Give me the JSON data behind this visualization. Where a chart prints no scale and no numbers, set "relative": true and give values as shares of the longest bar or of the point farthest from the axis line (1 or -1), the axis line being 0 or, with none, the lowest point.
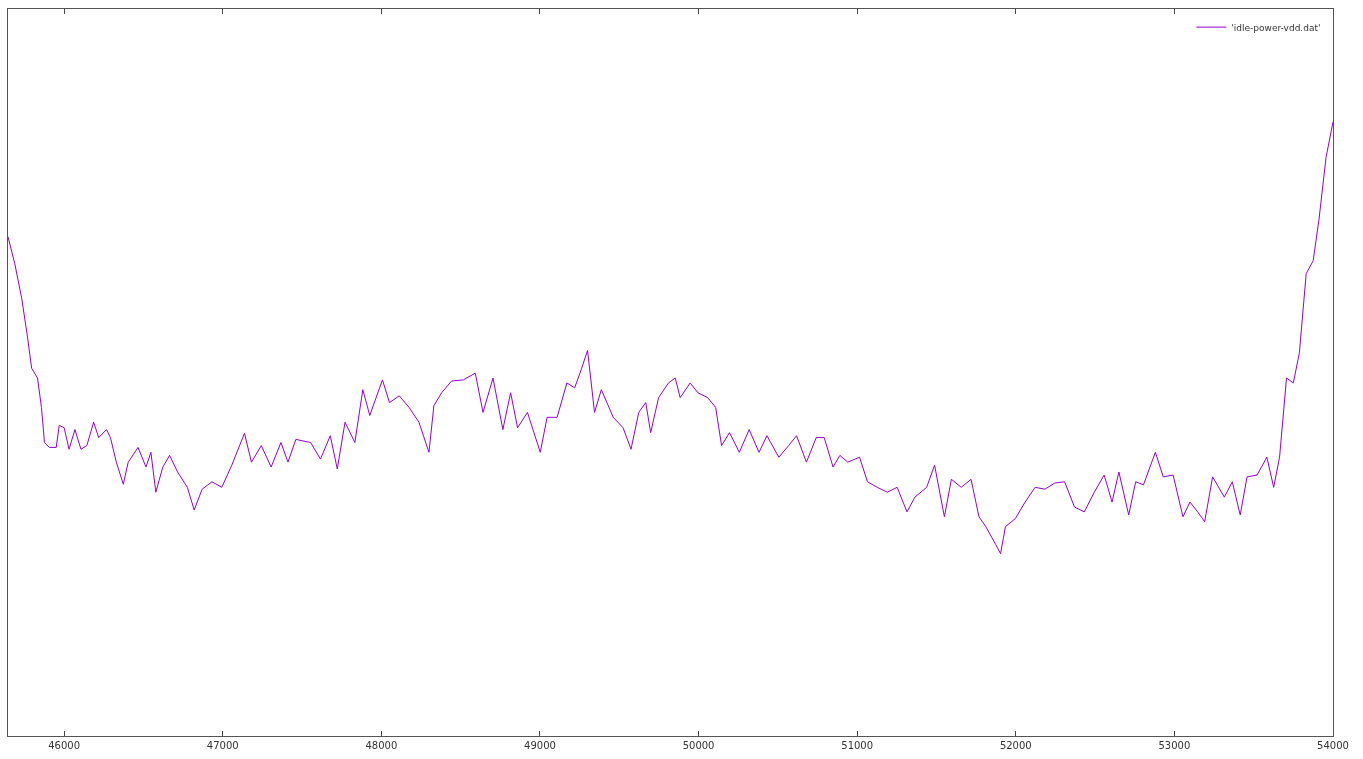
{
  "chart_data": {
    "type": "line",
    "relative": true,
    "xlim": [
      45646,
      54000
    ],
    "xticks": [
      46000,
      47000,
      48000,
      49000,
      50000,
      51000,
      52000,
      53000,
      54000
    ],
    "tick_labels": "x",
    "legend": "top right",
    "series": [
      {
        "name": "'idle-power-vdd.dat'",
        "color": "#9400d3",
        "x": [
          45646,
          45689,
          45733,
          45770,
          45795,
          45832,
          45857,
          45876,
          45907,
          45950,
          45969,
          46000,
          46031,
          46068,
          46106,
          46143,
          46186,
          46218,
          46267,
          46292,
          46329,
          46373,
          46404,
          46466,
          46516,
          46547,
          46578,
          46622,
          46665,
          46715,
          46777,
          46820,
          46870,
          46932,
          46994,
          47057,
          47137,
          47181,
          47243,
          47305,
          47367,
          47411,
          47461,
          47554,
          47616,
          47678,
          47722,
          47771,
          47833,
          47883,
          47927,
          48007,
          48051,
          48113,
          48175,
          48237,
          48300,
          48331,
          48380,
          48442,
          48517,
          48592,
          48641,
          48704,
          48766,
          48815,
          48859,
          48921,
          49002,
          49045,
          49108,
          49170,
          49219,
          49263,
          49300,
          49344,
          49387,
          49462,
          49524,
          49574,
          49623,
          49667,
          49698,
          49748,
          49810,
          49853,
          49884,
          49947,
          49996,
          50058,
          50108,
          50145,
          50195,
          50257,
          50319,
          50381,
          50431,
          50506,
          50568,
          50618,
          50680,
          50742,
          50792,
          50848,
          50891,
          50941,
          51015,
          51065,
          51127,
          51190,
          51252,
          51314,
          51364,
          51438,
          51488,
          51550,
          51594,
          51656,
          51718,
          51768,
          51811,
          51873,
          51904,
          51935,
          51997,
          52059,
          52122,
          52184,
          52246,
          52308,
          52370,
          52432,
          52495,
          52557,
          52607,
          52650,
          52712,
          52756,
          52805,
          52880,
          52930,
          52992,
          53054,
          53098,
          53147,
          53191,
          53241,
          53315,
          53365,
          53415,
          53458,
          53521,
          53583,
          53626,
          53663,
          53707,
          53750,
          53788,
          53831,
          53875,
          53912,
          53956,
          54000
        ],
        "values": [
          0.813,
          0.769,
          0.712,
          0.648,
          0.599,
          0.583,
          0.535,
          0.478,
          0.47,
          0.47,
          0.506,
          0.502,
          0.467,
          0.499,
          0.467,
          0.473,
          0.511,
          0.486,
          0.499,
          0.486,
          0.446,
          0.41,
          0.446,
          0.47,
          0.438,
          0.462,
          0.397,
          0.438,
          0.457,
          0.43,
          0.405,
          0.368,
          0.402,
          0.414,
          0.405,
          0.441,
          0.493,
          0.446,
          0.473,
          0.438,
          0.478,
          0.446,
          0.483,
          0.478,
          0.451,
          0.489,
          0.435,
          0.511,
          0.478,
          0.564,
          0.522,
          0.58,
          0.543,
          0.554,
          0.535,
          0.511,
          0.462,
          0.538,
          0.559,
          0.578,
          0.58,
          0.591,
          0.527,
          0.583,
          0.499,
          0.559,
          0.502,
          0.527,
          0.462,
          0.519,
          0.519,
          0.575,
          0.567,
          0.599,
          0.628,
          0.527,
          0.564,
          0.519,
          0.502,
          0.467,
          0.527,
          0.543,
          0.494,
          0.551,
          0.575,
          0.583,
          0.551,
          0.575,
          0.559,
          0.551,
          0.535,
          0.473,
          0.494,
          0.462,
          0.499,
          0.462,
          0.489,
          0.454,
          0.473,
          0.489,
          0.446,
          0.486,
          0.486,
          0.438,
          0.457,
          0.446,
          0.454,
          0.414,
          0.405,
          0.397,
          0.405,
          0.365,
          0.389,
          0.405,
          0.441,
          0.357,
          0.418,
          0.405,
          0.418,
          0.357,
          0.341,
          0.312,
          0.297,
          0.341,
          0.354,
          0.381,
          0.405,
          0.402,
          0.412,
          0.414,
          0.373,
          0.365,
          0.397,
          0.425,
          0.381,
          0.43,
          0.36,
          0.414,
          0.409,
          0.462,
          0.422,
          0.425,
          0.357,
          0.381,
          0.365,
          0.349,
          0.422,
          0.389,
          0.414,
          0.36,
          0.422,
          0.425,
          0.454,
          0.405,
          0.454,
          0.583,
          0.575,
          0.624,
          0.753,
          0.774,
          0.842,
          0.942,
          1
        ]
      }
    ]
  }
}
